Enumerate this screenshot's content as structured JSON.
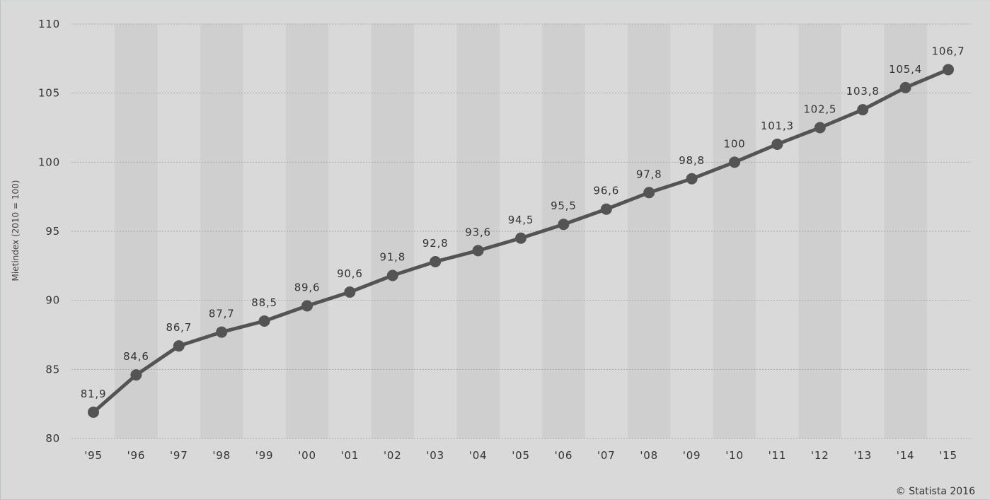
{
  "chart_data": {
    "type": "line",
    "categories": [
      "'95",
      "'96",
      "'97",
      "'98",
      "'99",
      "'00",
      "'01",
      "'02",
      "'03",
      "'04",
      "'05",
      "'06",
      "'07",
      "'08",
      "'09",
      "'10",
      "'11",
      "'12",
      "'13",
      "'14",
      "'15"
    ],
    "series": [
      {
        "values": [
          81.9,
          84.6,
          86.7,
          87.7,
          88.5,
          89.6,
          90.6,
          91.8,
          92.8,
          93.6,
          94.5,
          95.5,
          96.6,
          97.8,
          98.8,
          100,
          101.3,
          102.5,
          103.8,
          105.4,
          106.7
        ],
        "labels": [
          "81,9",
          "84,6",
          "86,7",
          "87,7",
          "88,5",
          "89,6",
          "90,6",
          "91,8",
          "92,8",
          "93,6",
          "94,5",
          "95,5",
          "96,6",
          "97,8",
          "98,8",
          "100",
          "101,3",
          "102,5",
          "103,8",
          "105,4",
          "106,7"
        ]
      }
    ],
    "ylabel": "Mietindex (2010 = 100)",
    "xlabel": "",
    "ylim": [
      80,
      110
    ],
    "yticks": [
      80,
      85,
      90,
      95,
      100,
      105,
      110
    ],
    "grid": true,
    "alternating_column_bands": true,
    "colors": {
      "background": "#d9d9d9",
      "band": "#cfcfcf",
      "line": "#545454",
      "gridline": "#aaaaaa",
      "text": "#333333"
    }
  },
  "credit": "© Statista 2016"
}
